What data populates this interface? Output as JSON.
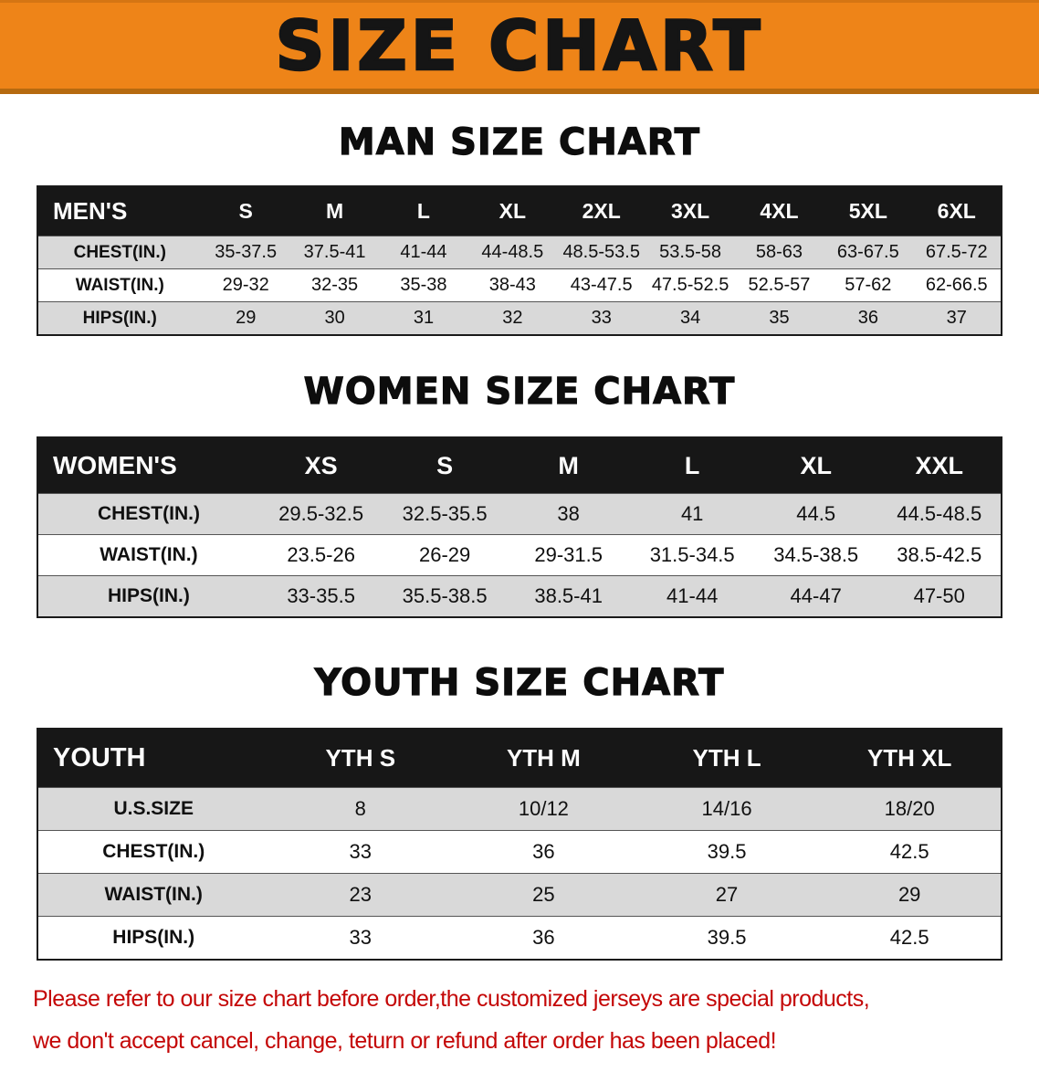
{
  "banner": {
    "title": "SIZE CHART"
  },
  "colors": {
    "banner_bg": "#ee8418",
    "banner_edge": "#b66a10",
    "header_bg": "#171717",
    "row_shade": "#d9d9d9",
    "footer_text": "#c40606"
  },
  "sections": {
    "men": {
      "heading": "MAN SIZE CHART"
    },
    "women": {
      "heading": "WOMEN SIZE CHART"
    },
    "youth": {
      "heading": "YOUTH SIZE CHART"
    }
  },
  "tables": {
    "men": {
      "header": [
        "MEN'S",
        "S",
        "M",
        "L",
        "XL",
        "2XL",
        "3XL",
        "4XL",
        "5XL",
        "6XL"
      ],
      "rows": [
        {
          "label": "CHEST(IN.)",
          "values": [
            "35-37.5",
            "37.5-41",
            "41-44",
            "44-48.5",
            "48.5-53.5",
            "53.5-58",
            "58-63",
            "63-67.5",
            "67.5-72"
          ]
        },
        {
          "label": "WAIST(IN.)",
          "values": [
            "29-32",
            "32-35",
            "35-38",
            "38-43",
            "43-47.5",
            "47.5-52.5",
            "52.5-57",
            "57-62",
            "62-66.5"
          ]
        },
        {
          "label": "HIPS(IN.)",
          "values": [
            "29",
            "30",
            "31",
            "32",
            "33",
            "34",
            "35",
            "36",
            "37"
          ]
        }
      ]
    },
    "women": {
      "header": [
        "WOMEN'S",
        "XS",
        "S",
        "M",
        "L",
        "XL",
        "XXL"
      ],
      "rows": [
        {
          "label": "CHEST(IN.)",
          "values": [
            "29.5-32.5",
            "32.5-35.5",
            "38",
            "41",
            "44.5",
            "44.5-48.5"
          ]
        },
        {
          "label": "WAIST(IN.)",
          "values": [
            "23.5-26",
            "26-29",
            "29-31.5",
            "31.5-34.5",
            "34.5-38.5",
            "38.5-42.5"
          ]
        },
        {
          "label": "HIPS(IN.)",
          "values": [
            "33-35.5",
            "35.5-38.5",
            "38.5-41",
            "41-44",
            "44-47",
            "47-50"
          ]
        }
      ]
    },
    "youth": {
      "header": [
        "YOUTH",
        "YTH S",
        "YTH M",
        "YTH L",
        "YTH XL"
      ],
      "rows": [
        {
          "label": "U.S.SIZE",
          "values": [
            "8",
            "10/12",
            "14/16",
            "18/20"
          ]
        },
        {
          "label": "CHEST(IN.)",
          "values": [
            "33",
            "36",
            "39.5",
            "42.5"
          ]
        },
        {
          "label": "WAIST(IN.)",
          "values": [
            "23",
            "25",
            "27",
            "29"
          ]
        },
        {
          "label": "HIPS(IN.)",
          "values": [
            "33",
            "36",
            "39.5",
            "42.5"
          ]
        }
      ]
    }
  },
  "footer": {
    "line1": "Please refer to our size chart before order,the customized jerseys are special products,",
    "line2": "we don't accept cancel, change, teturn or refund after order has been placed!"
  }
}
